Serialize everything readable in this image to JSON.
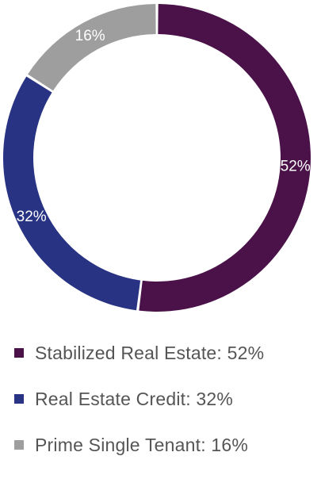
{
  "chart_data": {
    "type": "pie",
    "variant": "donut",
    "categories": [
      "Stabilized Real Estate",
      "Real Estate Credit",
      "Prime Single Tenant"
    ],
    "values": [
      52,
      32,
      16
    ],
    "slice_labels": [
      "52%",
      "32%",
      "16%"
    ],
    "colors": [
      "#4a1249",
      "#283384",
      "#9e9e9e"
    ],
    "legend_placement": "bottom",
    "legend": [
      {
        "label": "Stabilized Real Estate: 52%",
        "color": "#4a1249"
      },
      {
        "label": "Real Estate Credit: 32%",
        "color": "#283384"
      },
      {
        "label": "Prime Single Tenant: 16%",
        "color": "#9e9e9e"
      }
    ]
  }
}
